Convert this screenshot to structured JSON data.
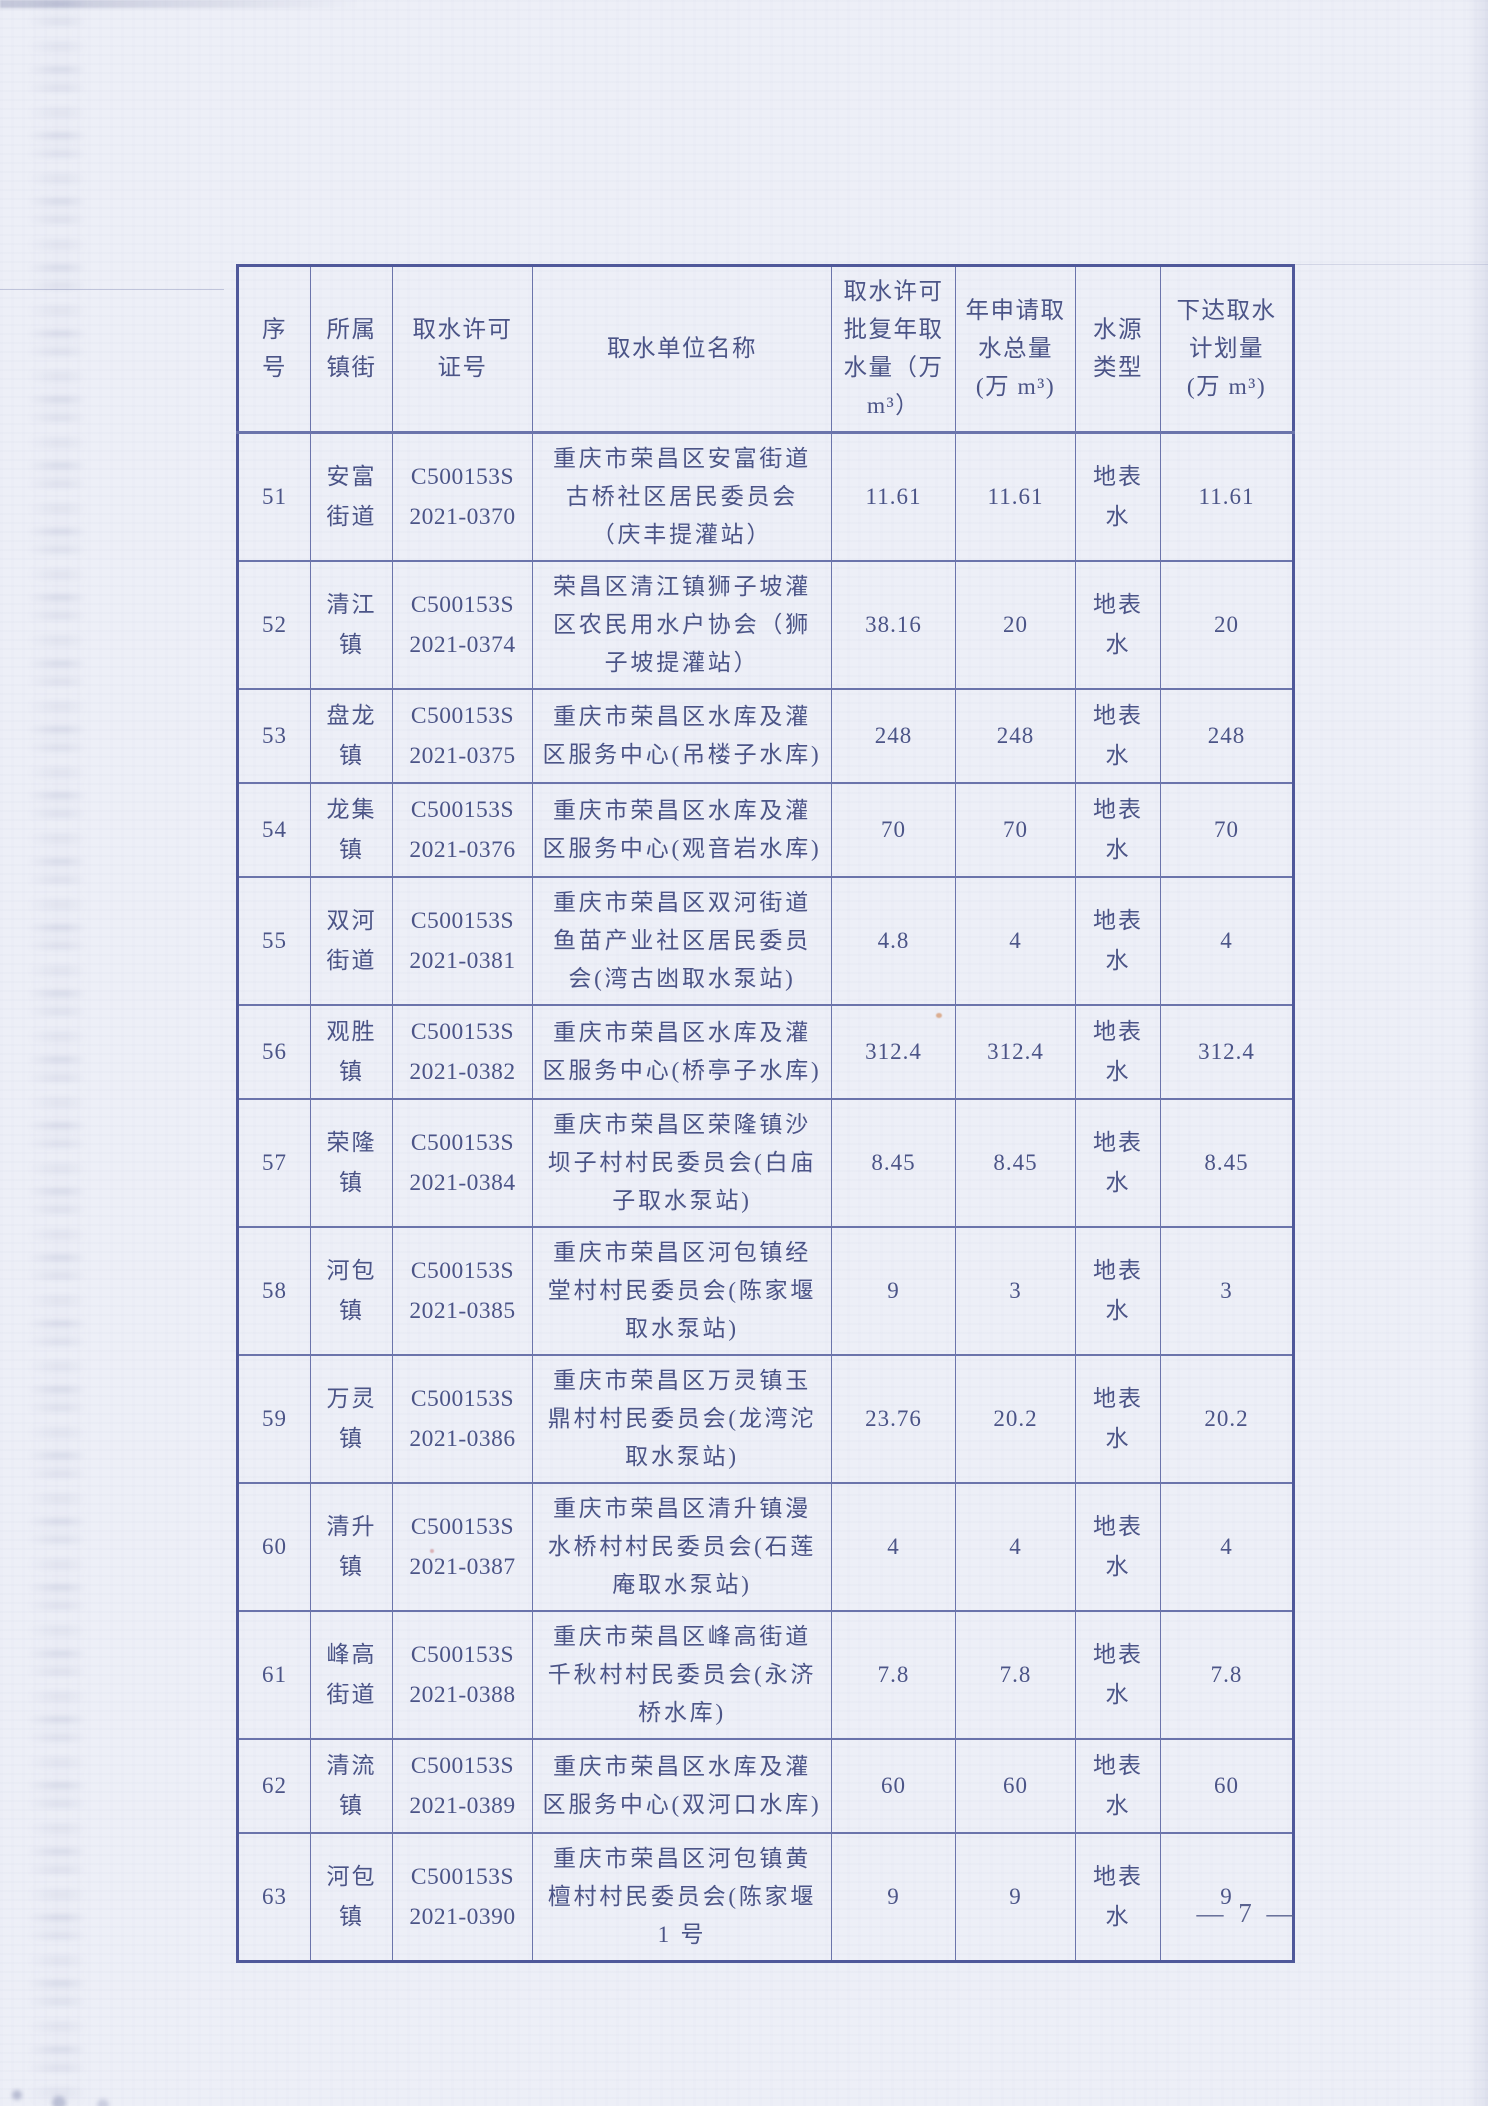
{
  "page": {
    "number_label": "— 7 —"
  },
  "table": {
    "headers": [
      "序\n号",
      "所属\n镇街",
      "取水许可\n证号",
      "取水单位名称",
      "取水许可\n批复年取\n水量（万\nm³）",
      "年申请取\n水总量\n(万 m³)",
      "水源\n类型",
      "下达取水\n计划量\n(万 m³)"
    ],
    "rows": [
      {
        "no": "51",
        "town": "安富\n街道",
        "permit": "C500153S\n2021-0370",
        "name": "重庆市荣昌区安富街道古桥社区居民委员会（庆丰提灌站）",
        "approved": "11.61",
        "applied": "11.61",
        "source": "地表\n水",
        "planned": "11.61"
      },
      {
        "no": "52",
        "town": "清江\n镇",
        "permit": "C500153S\n2021-0374",
        "name": "荣昌区清江镇狮子坡灌区农民用水户协会（狮子坡提灌站）",
        "approved": "38.16",
        "applied": "20",
        "source": "地表\n水",
        "planned": "20"
      },
      {
        "no": "53",
        "town": "盘龙\n镇",
        "permit": "C500153S\n2021-0375",
        "name": "重庆市荣昌区水库及灌区服务中心(吊楼子水库)",
        "approved": "248",
        "applied": "248",
        "source": "地表\n水",
        "planned": "248"
      },
      {
        "no": "54",
        "town": "龙集\n镇",
        "permit": "C500153S\n2021-0376",
        "name": "重庆市荣昌区水库及灌区服务中心(观音岩水库)",
        "approved": "70",
        "applied": "70",
        "source": "地表\n水",
        "planned": "70"
      },
      {
        "no": "55",
        "town": "双河\n街道",
        "permit": "C500153S\n2021-0381",
        "name": "重庆市荣昌区双河街道鱼苗产业社区居民委员会(湾古凼取水泵站)",
        "approved": "4.8",
        "applied": "4",
        "source": "地表\n水",
        "planned": "4"
      },
      {
        "no": "56",
        "town": "观胜\n镇",
        "permit": "C500153S\n2021-0382",
        "name": "重庆市荣昌区水库及灌区服务中心(桥亭子水库)",
        "approved": "312.4",
        "applied": "312.4",
        "source": "地表\n水",
        "planned": "312.4"
      },
      {
        "no": "57",
        "town": "荣隆\n镇",
        "permit": "C500153S\n2021-0384",
        "name": "重庆市荣昌区荣隆镇沙坝子村村民委员会(白庙子取水泵站)",
        "approved": "8.45",
        "applied": "8.45",
        "source": "地表\n水",
        "planned": "8.45"
      },
      {
        "no": "58",
        "town": "河包\n镇",
        "permit": "C500153S\n2021-0385",
        "name": "重庆市荣昌区河包镇经堂村村民委员会(陈家堰取水泵站)",
        "approved": "9",
        "applied": "3",
        "source": "地表\n水",
        "planned": "3"
      },
      {
        "no": "59",
        "town": "万灵\n镇",
        "permit": "C500153S\n2021-0386",
        "name": "重庆市荣昌区万灵镇玉鼎村村民委员会(龙湾沱取水泵站)",
        "approved": "23.76",
        "applied": "20.2",
        "source": "地表\n水",
        "planned": "20.2"
      },
      {
        "no": "60",
        "town": "清升\n镇",
        "permit": "C500153S\n2021-0387",
        "name": "重庆市荣昌区清升镇漫水桥村村民委员会(石莲庵取水泵站)",
        "approved": "4",
        "applied": "4",
        "source": "地表\n水",
        "planned": "4"
      },
      {
        "no": "61",
        "town": "峰高\n街道",
        "permit": "C500153S\n2021-0388",
        "name": "重庆市荣昌区峰高街道千秋村村民委员会(永济桥水库)",
        "approved": "7.8",
        "applied": "7.8",
        "source": "地表\n水",
        "planned": "7.8"
      },
      {
        "no": "62",
        "town": "清流\n镇",
        "permit": "C500153S\n2021-0389",
        "name": "重庆市荣昌区水库及灌区服务中心(双河口水库)",
        "approved": "60",
        "applied": "60",
        "source": "地表\n水",
        "planned": "60"
      },
      {
        "no": "63",
        "town": "河包\n镇",
        "permit": "C500153S\n2021-0390",
        "name": "重庆市荣昌区河包镇黄檀村村民委员会(陈家堰 1 号",
        "approved": "9",
        "applied": "9",
        "source": "地表\n水",
        "planned": "9"
      }
    ]
  }
}
